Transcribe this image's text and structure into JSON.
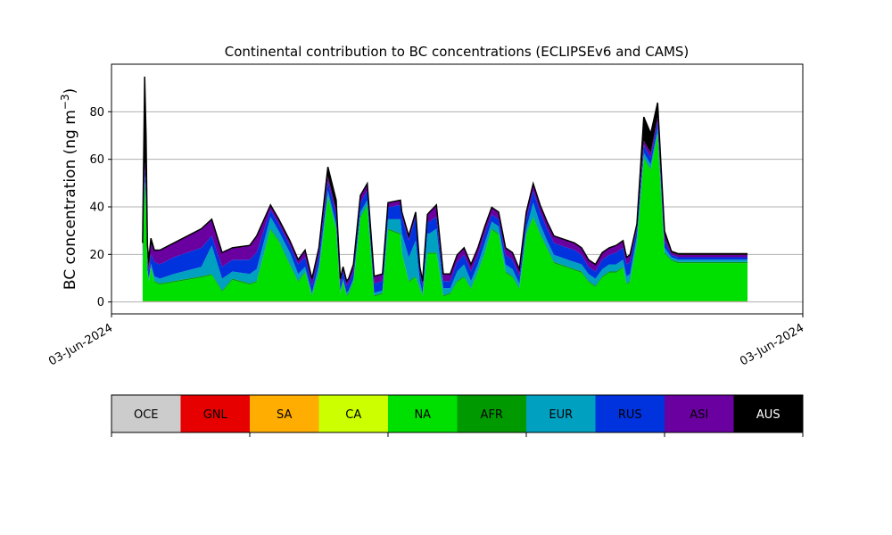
{
  "chart_data": {
    "type": "area",
    "stacked": true,
    "title": "Continental contribution to BC concentrations (ECLIPSEv6 and CAMS)",
    "ylabel_main": "BC concentration (ng m",
    "ylabel_sup": "−3",
    "ylabel_close": ")",
    "xlabel": "",
    "ylim": [
      -5,
      100
    ],
    "yticks": [
      0,
      20,
      40,
      60,
      80
    ],
    "xticks": [
      "03-Jun-2024",
      "03-Jun-2024"
    ],
    "xlim": [
      0,
      100
    ],
    "grid": "y",
    "legend": "colorbar-below",
    "series_order": [
      "OCE",
      "GNL",
      "SA",
      "CA",
      "NA",
      "AFR",
      "EUR",
      "RUS",
      "ASI",
      "AUS"
    ],
    "colors": {
      "OCE": "#cccccc",
      "GNL": "#e60000",
      "SA": "#ffad00",
      "CA": "#ccff00",
      "NA": "#00e000",
      "AFR": "#009a00",
      "EUR": "#00a0c0",
      "RUS": "#0033dd",
      "ASI": "#6a00a0",
      "AUS": "#000000"
    },
    "legend_text_colors": {
      "OCE": "#000000",
      "GNL": "#000000",
      "SA": "#000000",
      "CA": "#000000",
      "NA": "#000000",
      "AFR": "#000000",
      "EUR": "#000000",
      "RUS": "#000000",
      "ASI": "#000000",
      "AUS": "#ffffff"
    },
    "x": [
      4.5,
      4.8,
      5.0,
      5.2,
      5.4,
      5.7,
      6.2,
      7,
      9,
      13,
      14.5,
      16,
      17.5,
      20,
      21,
      23,
      24.2,
      25.8,
      27,
      28,
      29,
      30,
      31.3,
      32.5,
      33.1,
      33.5,
      34,
      34.3,
      35,
      36,
      37,
      38,
      39.2,
      40,
      41.8,
      42,
      43,
      44,
      44.6,
      45,
      45.7,
      46,
      47,
      48,
      49,
      50,
      51,
      52,
      53,
      54,
      55,
      56,
      57,
      58,
      59,
      60,
      61,
      62,
      63,
      64,
      65,
      66,
      67,
      68,
      69,
      70,
      71,
      72,
      73,
      74,
      74.5,
      75,
      76,
      77,
      78,
      79,
      80,
      81,
      82,
      83,
      84,
      85,
      86,
      87,
      88,
      89,
      90,
      91,
      91.5,
      92
    ],
    "series": [
      {
        "name": "OCE",
        "values": [
          0.2,
          0.2,
          0.2,
          0.2,
          0.2,
          0.2,
          0.2,
          0.2,
          0.2,
          0.2,
          0.2,
          0.2,
          0.2,
          0.2,
          0.2,
          0.2,
          0.2,
          0.2,
          0.2,
          0.2,
          0.2,
          0.2,
          0.2,
          0.2,
          0.2,
          0.2,
          0.2,
          0.2,
          0.2,
          0.2,
          0.2,
          0.2,
          0.2,
          0.2,
          0.2,
          0.2,
          0.2,
          0.2,
          0.2,
          0.2,
          0.2,
          0.2,
          0.2,
          0.2,
          0.2,
          0.2,
          0.2,
          0.2,
          0.2,
          0.2,
          0.2,
          0.2,
          0.2,
          0.2,
          0.2,
          0.2,
          0.2,
          0.2,
          0.2,
          0.2,
          0.2,
          0.2,
          0.2,
          0.2,
          0.2,
          0.2,
          0.2,
          0.2,
          0.2,
          0.2,
          0.2,
          0.2,
          0.2,
          0.2,
          0.2,
          0.2,
          0.2,
          0.2,
          0.2,
          0.2,
          0.2,
          0.2,
          0.2,
          0.2,
          0.2,
          0.2,
          0.2,
          0.2,
          0.2,
          0.2
        ]
      },
      {
        "name": "GNL",
        "values": [
          0.1,
          0.1,
          0.1,
          0.1,
          0.1,
          0.1,
          0.1,
          0.1,
          0.1,
          0.1,
          0.1,
          0.1,
          0.1,
          0.1,
          0.1,
          0.1,
          0.1,
          0.1,
          0.1,
          0.1,
          0.1,
          0.1,
          0.1,
          0.1,
          0.1,
          0.1,
          0.1,
          0.1,
          0.1,
          0.1,
          0.1,
          0.1,
          0.1,
          0.1,
          0.1,
          0.1,
          0.1,
          0.1,
          0.1,
          0.1,
          0.1,
          0.1,
          0.1,
          0.1,
          0.1,
          0.1,
          0.1,
          0.1,
          0.1,
          0.1,
          0.1,
          0.1,
          0.1,
          0.1,
          0.1,
          0.1,
          0.1,
          0.1,
          0.1,
          0.1,
          0.1,
          0.1,
          0.1,
          0.1,
          0.1,
          0.1,
          0.1,
          0.1,
          0.1,
          0.1,
          0.1,
          0.1,
          0.1,
          0.1,
          0.1,
          0.1,
          0.1,
          0.1,
          0.1,
          0.1,
          0.1,
          0.1,
          0.1,
          0.1,
          0.1,
          0.1,
          0.1,
          0.1,
          0.1,
          0.1
        ]
      },
      {
        "name": "SA",
        "values": [
          0,
          0,
          0,
          0,
          0,
          0,
          0,
          0,
          0,
          0,
          0,
          0,
          0,
          0,
          0,
          0,
          0,
          0,
          0,
          0,
          0,
          0,
          0,
          0,
          0,
          0,
          0,
          0,
          0,
          0,
          0,
          0,
          0,
          0,
          0,
          0,
          0,
          0,
          0,
          0,
          0,
          0,
          0,
          0,
          0,
          0,
          0,
          0,
          0,
          0,
          0,
          0,
          0,
          0,
          0,
          0,
          0,
          0,
          0,
          0,
          0,
          0,
          0,
          0,
          0,
          0,
          0,
          0,
          0,
          0,
          0,
          0,
          0,
          0,
          0,
          0,
          0,
          0,
          0,
          0,
          0,
          0,
          0,
          0,
          0,
          0,
          0,
          0,
          0,
          0
        ]
      },
      {
        "name": "CA",
        "values": [
          0,
          0,
          0,
          0,
          0,
          0,
          0,
          0,
          0,
          0,
          0,
          0,
          0,
          0,
          0,
          0,
          0,
          0,
          0,
          0,
          0,
          0,
          0,
          0,
          0,
          0,
          0,
          0,
          0,
          0,
          0,
          0,
          0,
          0,
          0,
          0,
          0,
          0,
          0,
          0,
          0,
          0,
          0,
          0,
          0,
          0,
          0,
          0,
          0,
          0,
          0,
          0,
          0,
          0,
          0,
          0,
          0,
          0,
          0,
          0,
          0,
          0,
          0,
          0,
          0,
          0,
          0,
          0,
          0,
          0,
          0,
          0,
          0,
          0,
          0,
          0,
          0,
          0,
          0,
          0,
          0,
          0,
          0,
          0,
          0,
          0,
          0,
          0,
          0,
          0
        ]
      },
      {
        "name": "NA",
        "values": [
          14,
          50,
          40,
          12,
          8,
          14,
          8,
          7,
          8,
          10,
          11,
          4,
          9,
          7,
          8,
          30,
          25,
          15,
          8,
          12,
          2,
          12,
          44,
          30,
          3,
          8,
          2,
          3,
          8,
          35,
          40,
          2,
          3,
          30,
          28,
          20,
          8,
          10,
          5,
          2,
          20,
          20,
          20,
          2,
          3,
          8,
          10,
          5,
          12,
          20,
          30,
          28,
          12,
          10,
          5,
          28,
          35,
          28,
          22,
          16,
          15,
          14,
          13,
          12,
          8,
          6,
          10,
          12,
          12,
          14,
          7,
          8,
          24,
          60,
          55,
          70,
          20,
          17,
          16,
          16,
          16,
          16,
          16,
          16,
          16,
          16,
          16,
          16,
          16,
          16
        ]
      },
      {
        "name": "AFR",
        "values": [
          0.5,
          0.5,
          0.5,
          0.5,
          0.5,
          0.5,
          0.5,
          0.5,
          0.5,
          0.5,
          0.5,
          0.5,
          0.5,
          0.5,
          0.5,
          0.5,
          0.5,
          0.5,
          0.5,
          0.5,
          0.5,
          0.5,
          0.5,
          0.5,
          0.5,
          0.5,
          0.5,
          0.5,
          0.5,
          0.5,
          0.5,
          0.5,
          0.5,
          0.5,
          0.5,
          0.5,
          0.5,
          0.5,
          0.5,
          0.5,
          0.5,
          0.5,
          0.5,
          0.5,
          0.5,
          0.5,
          0.5,
          0.5,
          0.5,
          0.5,
          0.5,
          0.5,
          0.5,
          0.5,
          0.5,
          0.5,
          0.5,
          0.5,
          0.5,
          0.5,
          0.5,
          0.5,
          0.5,
          0.5,
          0.5,
          0.5,
          0.5,
          0.5,
          0.5,
          0.5,
          0.5,
          0.5,
          0.5,
          0.5,
          0.5,
          0.5,
          0.5,
          0.5,
          0.5,
          0.5,
          0.5,
          0.5,
          0.5,
          0.5,
          0.5,
          0.5,
          0.5,
          0.5,
          0.5,
          0.5
        ]
      },
      {
        "name": "EUR",
        "values": [
          1,
          2,
          2,
          1,
          1,
          1.5,
          2,
          2,
          3,
          4,
          12,
          5,
          3,
          4,
          5,
          5,
          4,
          5,
          3,
          2,
          1,
          3,
          2,
          2,
          1,
          1,
          1,
          1,
          1,
          2,
          2,
          1,
          1,
          4,
          6,
          8,
          10,
          15,
          3,
          1,
          8,
          8,
          10,
          3,
          2,
          4,
          5,
          3,
          3,
          4,
          3,
          3,
          3,
          3,
          2,
          2,
          6,
          4,
          3,
          3,
          3,
          3,
          3,
          3,
          3,
          3,
          3,
          3,
          3,
          3,
          3,
          3,
          3,
          2,
          2,
          2,
          2,
          1,
          1,
          1,
          1,
          1,
          1,
          1,
          1,
          1,
          1,
          1,
          1,
          1
        ]
      },
      {
        "name": "RUS",
        "values": [
          3,
          3,
          3,
          3,
          3,
          4,
          6,
          6,
          7,
          8,
          4,
          5,
          5,
          6,
          7,
          3,
          3,
          3,
          4,
          4,
          3,
          4,
          4,
          4,
          3,
          3,
          3,
          3,
          3,
          4,
          4,
          4,
          4,
          5,
          6,
          7,
          7,
          10,
          4,
          3,
          5,
          5,
          5,
          3,
          3,
          4,
          4,
          4,
          4,
          4,
          3,
          3,
          4,
          4,
          3,
          4,
          5,
          5,
          5,
          5,
          5,
          5,
          5,
          4,
          3,
          3,
          4,
          4,
          5,
          5,
          5,
          5,
          3,
          3,
          3,
          3,
          3,
          1,
          1,
          1,
          1,
          1,
          1,
          1,
          1,
          1,
          1,
          1,
          1,
          1
        ]
      },
      {
        "name": "ASI",
        "values": [
          1.5,
          3,
          3,
          2,
          2,
          4,
          5,
          6,
          6,
          8,
          7,
          6,
          5,
          6,
          7,
          2,
          2,
          2,
          2,
          3,
          3,
          3,
          2,
          2,
          2,
          2,
          2,
          2,
          3,
          3,
          3,
          3,
          3,
          2,
          2,
          2,
          2,
          2,
          2,
          2,
          3,
          4,
          5,
          3,
          3,
          3,
          3,
          3,
          3,
          3,
          3,
          3,
          3,
          3,
          3,
          3,
          3,
          3,
          3,
          3,
          3,
          3,
          3,
          3,
          3,
          3,
          3,
          3,
          3,
          3,
          3,
          3,
          2,
          2,
          2,
          2,
          2,
          1,
          1,
          1,
          1,
          1,
          1,
          1,
          1,
          1,
          1,
          1,
          1,
          1
        ]
      },
      {
        "name": "AUS",
        "values": [
          4.5,
          36,
          21,
          5,
          3,
          2.5,
          0,
          0,
          0,
          0,
          0,
          0,
          0,
          0,
          0,
          0,
          0,
          0,
          0,
          0,
          0,
          0,
          4,
          4,
          0,
          0,
          0,
          0,
          0,
          0,
          0,
          0,
          0,
          0,
          0,
          0,
          0,
          0,
          0,
          0,
          0,
          0,
          0,
          0,
          0,
          0,
          0,
          0,
          0,
          0,
          0,
          0,
          0,
          0,
          0,
          0,
          0,
          0,
          0,
          0,
          0,
          0,
          0,
          0,
          0,
          0,
          0,
          0,
          0,
          0,
          0,
          0,
          0,
          10,
          8,
          6,
          2,
          0.5,
          0.5,
          0.5,
          0.5,
          0.5,
          0.5,
          0.5,
          0.5,
          0.5,
          0.5,
          0.5,
          0.5,
          0.5
        ]
      }
    ]
  }
}
